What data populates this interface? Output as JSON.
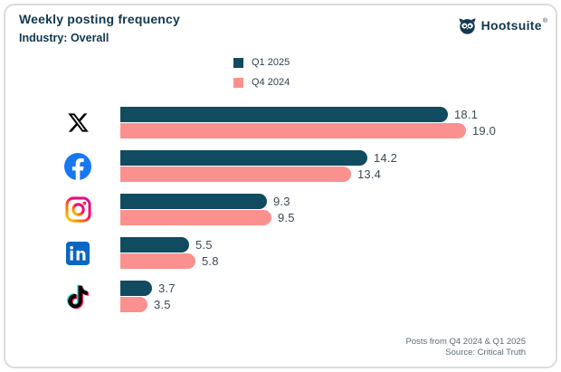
{
  "header": {
    "title": "Weekly posting frequency",
    "subtitle": "Industry: Overall",
    "brand_name": "Hootsuite",
    "brand_reg": "®"
  },
  "legend": [
    {
      "label": "Q1 2025",
      "color": "#114B5F"
    },
    {
      "label": "Q4 2024",
      "color": "#FA918E"
    }
  ],
  "chart_data": {
    "type": "bar",
    "orientation": "horizontal",
    "title": "Weekly posting frequency",
    "subtitle": "Industry: Overall",
    "categories": [
      "X",
      "Facebook",
      "Instagram",
      "LinkedIn",
      "TikTok"
    ],
    "category_icons": [
      "x-icon",
      "facebook-icon",
      "instagram-icon",
      "linkedin-icon",
      "tiktok-icon"
    ],
    "series": [
      {
        "name": "Q1 2025",
        "color": "#114B5F",
        "values": [
          18.1,
          14.2,
          9.3,
          5.5,
          3.7
        ]
      },
      {
        "name": "Q4 2024",
        "color": "#FA918E",
        "values": [
          19.0,
          13.4,
          9.5,
          5.8,
          3.5
        ]
      }
    ],
    "value_labels": true,
    "value_decimals": 1,
    "legend_position": "top-center",
    "grid": false,
    "axis_hidden": true
  },
  "footer": {
    "line1": "Posts from Q4 2024 & Q1 2025",
    "line2": "Source: Critical Truth"
  },
  "colors": {
    "q1": "#114B5F",
    "q4": "#FA918E",
    "title_text": "#11384F",
    "value_text": "#3B4A56",
    "footer_text": "#5C6C78",
    "facebook_blue": "#1877F2",
    "linkedin_blue": "#0A66C2"
  }
}
